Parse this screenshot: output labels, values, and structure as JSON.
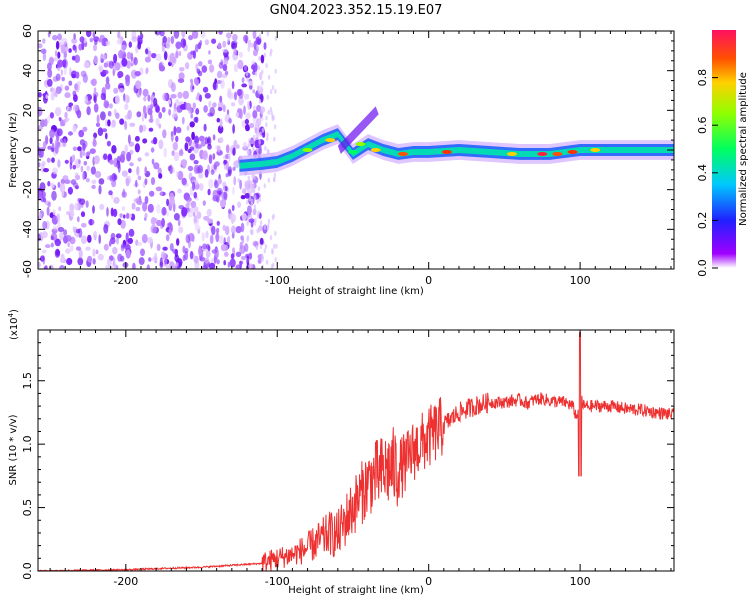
{
  "title": "GN04.2023.352.15.19.E07",
  "chart_data": [
    {
      "type": "heatmap",
      "xlabel": "Height of straight line (km)",
      "ylabel": "Frequency (Hz)",
      "xlim": [
        -258,
        162
      ],
      "ylim": [
        -60,
        60
      ],
      "x_ticks": [
        -200,
        -100,
        0,
        100
      ],
      "y_ticks": [
        60,
        40,
        20,
        0,
        -20,
        -40,
        -60
      ],
      "colorbar": {
        "label": "Normalized spectral amplitude",
        "range": [
          0.0,
          1.0
        ],
        "ticks": [
          0.0,
          0.2,
          0.4,
          0.6,
          0.8
        ]
      }
    },
    {
      "type": "line",
      "xlabel": "Height of straight line (km)",
      "ylabel": "SNR (10 * v/v)",
      "exponent_label": "(x10",
      "exponent_power": "4",
      "exponent_close": ")",
      "xlim": [
        -258,
        162
      ],
      "ylim": [
        0.0,
        1.9
      ],
      "x_ticks": [
        -200,
        -100,
        0,
        100
      ],
      "y_ticks": [
        "0.0",
        "0.5",
        "1.0",
        "1.5"
      ],
      "color": "#ee3030",
      "series": [
        {
          "x": [
            -258,
            -200,
            -150,
            -110,
            -100,
            -90,
            -80,
            -70,
            -65,
            -60,
            -55,
            -50,
            -45,
            -40,
            -35,
            -30,
            -25,
            -20,
            -15,
            -10,
            -5,
            0,
            10,
            20,
            30,
            40,
            50,
            60,
            65,
            70,
            75,
            80,
            90,
            95,
            98,
            100,
            102,
            105,
            110,
            120,
            130,
            140,
            150,
            162
          ],
          "y": [
            0.0,
            0.01,
            0.03,
            0.06,
            0.1,
            0.13,
            0.18,
            0.26,
            0.3,
            0.28,
            0.4,
            0.5,
            0.6,
            0.7,
            0.75,
            0.78,
            0.82,
            0.8,
            0.85,
            0.95,
            1.0,
            1.05,
            1.15,
            1.25,
            1.3,
            1.33,
            1.33,
            1.35,
            1.32,
            1.35,
            1.36,
            1.34,
            1.33,
            1.3,
            1.2,
            1.45,
            1.3,
            1.3,
            1.3,
            1.3,
            1.28,
            1.27,
            1.25,
            1.23
          ]
        }
      ]
    }
  ]
}
